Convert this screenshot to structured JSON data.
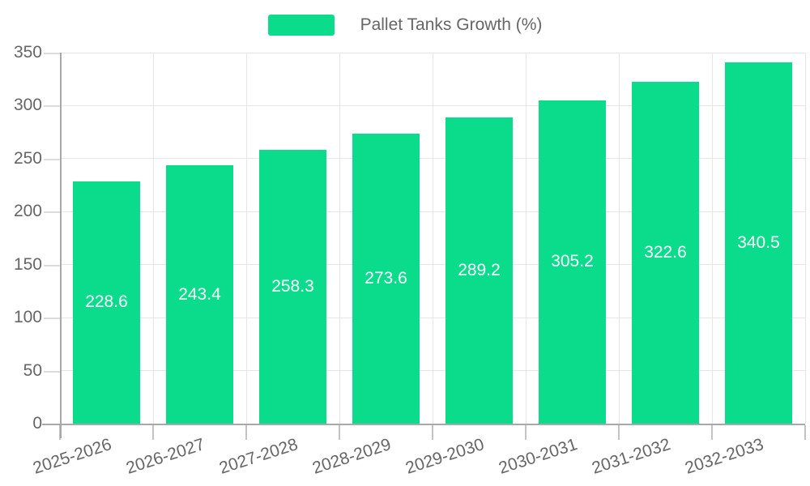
{
  "chart_data": {
    "type": "bar",
    "legend": "Pallet Tanks Growth (%)",
    "legend_position": "top-center",
    "categories": [
      "2025-2026",
      "2026-2027",
      "2027-2028",
      "2028-2029",
      "2029-2030",
      "2030-2031",
      "2031-2032",
      "2032-2033"
    ],
    "values": [
      228.6,
      243.4,
      258.3,
      273.6,
      289.2,
      305.2,
      322.6,
      340.5
    ],
    "value_labels": [
      "228.6",
      "243.4",
      "258.3",
      "273.6",
      "289.2",
      "305.2",
      "322.6",
      "340.5"
    ],
    "y_ticks": [
      0,
      50,
      100,
      150,
      200,
      250,
      300,
      350
    ],
    "ylim": [
      0,
      350
    ],
    "xlabel": "",
    "ylabel": "",
    "grid": true,
    "x_label_rotation_deg": -18,
    "colors": {
      "bar": "#0adc8c",
      "value_text": "#ffffff",
      "text": "#666666",
      "grid": "#e6e6e6",
      "axis": "#a8a8a8",
      "tick_y": "#dcdcdc",
      "tick_x": "#c4c4c4",
      "background": "#ffffff"
    }
  }
}
